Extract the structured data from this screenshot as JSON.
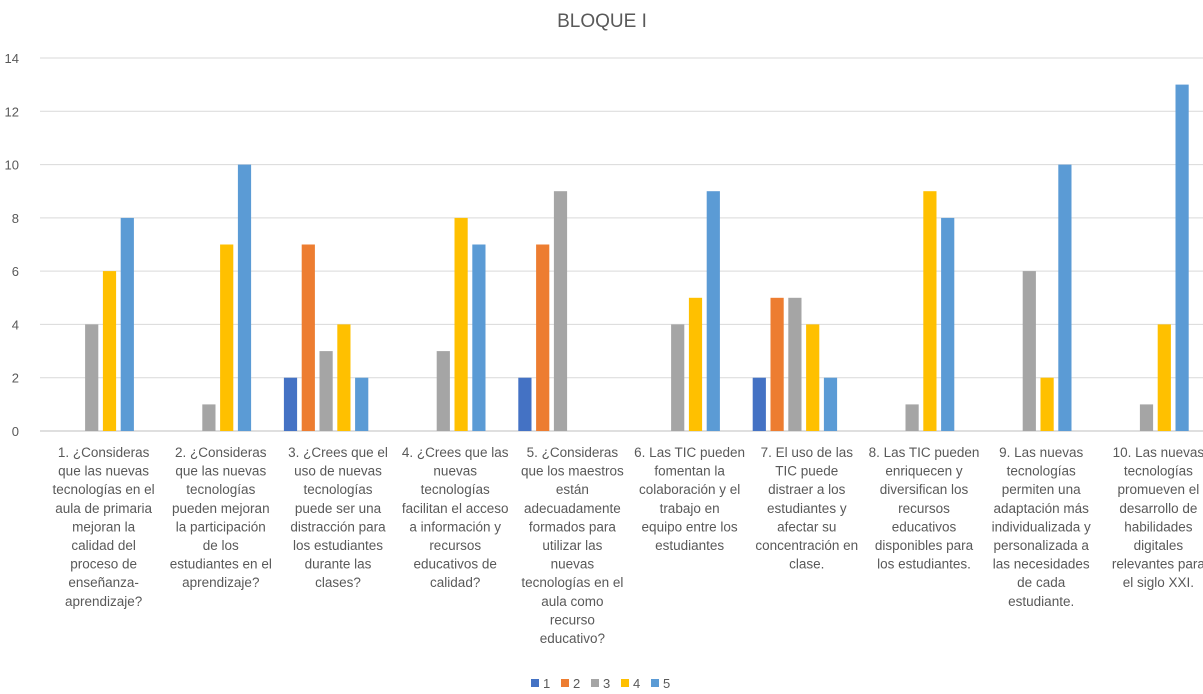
{
  "chart_data": {
    "type": "bar",
    "title": "BLOQUE I",
    "xlabel": "",
    "ylabel": "",
    "ylim": [
      0,
      14
    ],
    "yticks": [
      0,
      2,
      4,
      6,
      8,
      10,
      12,
      14
    ],
    "grid": true,
    "legend_position": "bottom",
    "categories": [
      [
        "1. ¿Consideras",
        "que las nuevas",
        "tecnologías en el",
        "aula de primaria",
        "mejoran la",
        "calidad del",
        "proceso de",
        "enseñanza-",
        "aprendizaje?"
      ],
      [
        "2. ¿Consideras",
        "que las nuevas",
        "tecnologías",
        "pueden mejoran",
        "la participación",
        "de los",
        "estudiantes en el",
        "aprendizaje?"
      ],
      [
        "3. ¿Crees que el",
        "uso de nuevas",
        "tecnologías",
        "puede ser una",
        "distracción para",
        "los estudiantes",
        "durante las",
        "clases?"
      ],
      [
        "4. ¿Crees que las",
        "nuevas",
        "tecnologías",
        "facilitan el acceso",
        "a información y",
        "recursos",
        "educativos de",
        "calidad?"
      ],
      [
        "5. ¿Consideras",
        "que los maestros",
        "están",
        "adecuadamente",
        "formados para",
        "utilizar las",
        "nuevas",
        "tecnologías en el",
        "aula como",
        "recurso",
        "educativo?"
      ],
      [
        "6. Las TIC pueden",
        "fomentan la",
        "colaboración y el",
        "trabajo en",
        "equipo entre los",
        "estudiantes"
      ],
      [
        "7. El uso de las",
        "TIC puede",
        "distraer a los",
        "estudiantes y",
        "afectar su",
        "concentración en",
        "clase."
      ],
      [
        "8. Las TIC pueden",
        "enriquecen y",
        "diversifican los",
        "recursos",
        "educativos",
        "disponibles para",
        "los estudiantes."
      ],
      [
        "9. Las nuevas",
        "tecnologías",
        "permiten una",
        "adaptación más",
        "individualizada y",
        "personalizada a",
        "las necesidades",
        "de cada",
        "estudiante."
      ],
      [
        "10. Las nuevas",
        "tecnologías",
        "promueven el",
        "desarrollo de",
        "habilidades",
        "digitales",
        "relevantes para",
        "el siglo XXI."
      ]
    ],
    "series": [
      {
        "name": "1",
        "color": "#4472C4",
        "values": [
          0,
          0,
          2,
          0,
          2,
          0,
          2,
          0,
          0,
          0
        ]
      },
      {
        "name": "2",
        "color": "#ED7D31",
        "values": [
          0,
          0,
          7,
          0,
          7,
          0,
          5,
          0,
          0,
          0
        ]
      },
      {
        "name": "3",
        "color": "#A5A5A5",
        "values": [
          4,
          1,
          3,
          3,
          9,
          4,
          5,
          1,
          6,
          1
        ]
      },
      {
        "name": "4",
        "color": "#FFC000",
        "values": [
          6,
          7,
          4,
          8,
          0,
          5,
          4,
          9,
          2,
          4
        ]
      },
      {
        "name": "5",
        "color": "#5B9BD5",
        "values": [
          8,
          10,
          2,
          7,
          0,
          9,
          2,
          8,
          10,
          13
        ]
      }
    ]
  }
}
